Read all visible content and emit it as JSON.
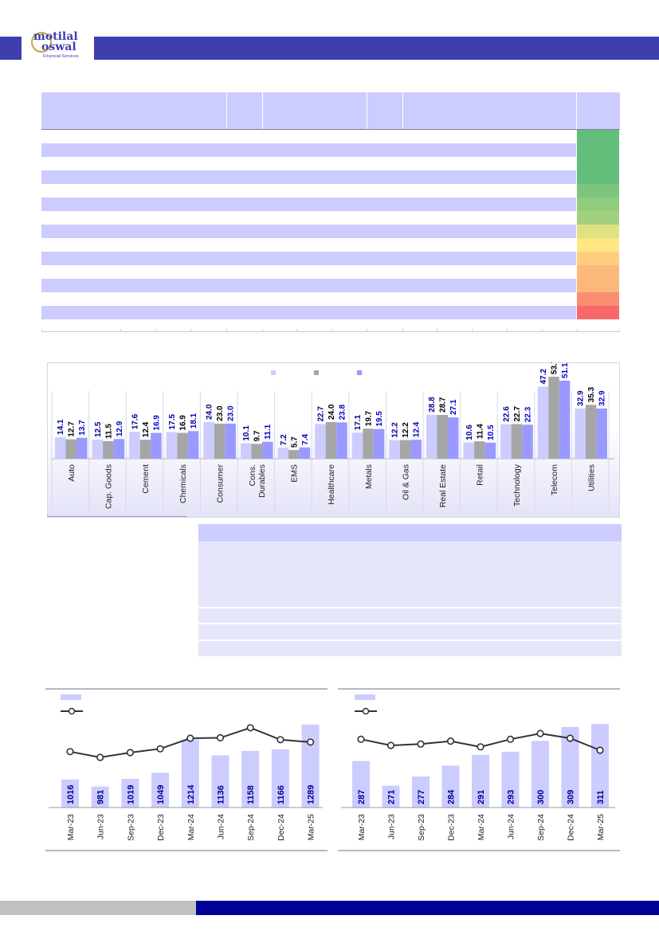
{
  "brand": {
    "line1": "motilal",
    "line2": "oswal",
    "sub": "Financial Services"
  },
  "pe_chart": {
    "chart_data": {
      "type": "bar",
      "categories": [
        "Auto",
        "Cap. Goods",
        "Cement",
        "Chemicals",
        "Consumer",
        "Cons. Durables",
        "EMS",
        "Healthcare",
        "Metals",
        "Oil & Gas",
        "Real Estate",
        "Retail",
        "Technology",
        "Telecom",
        "Utilities"
      ],
      "category_lines": [
        [
          "Auto"
        ],
        [
          "Cap. Goods"
        ],
        [
          "Cement"
        ],
        [
          "Chemicals"
        ],
        [
          "Consumer"
        ],
        [
          "Cons.",
          "Durables"
        ],
        [
          "EMS"
        ],
        [
          "Healthcare"
        ],
        [
          "Metals"
        ],
        [
          "Oil & Gas"
        ],
        [
          "Real Estate"
        ],
        [
          "Retail"
        ],
        [
          "Technology"
        ],
        [
          "Telecom"
        ],
        [
          "Utilities"
        ]
      ],
      "series": [
        {
          "name": "",
          "color": "#ccccff",
          "label_color": "#000096",
          "values": [
            14.1,
            12.5,
            17.6,
            17.5,
            24.0,
            10.1,
            7.2,
            22.7,
            17.1,
            12.2,
            28.8,
            10.6,
            22.6,
            47.2,
            32.9
          ]
        },
        {
          "name": "",
          "color": "#a6a6a6",
          "label_color": "#000000",
          "values": [
            12.7,
            11.5,
            12.4,
            16.9,
            23.0,
            9.7,
            5.7,
            24.0,
            19.7,
            12.2,
            28.7,
            11.4,
            22.7,
            53.7,
            35.3
          ]
        },
        {
          "name": "",
          "color": "#9999ff",
          "label_color": "#0000cc",
          "values": [
            13.7,
            12.9,
            16.9,
            18.1,
            23.0,
            11.1,
            7.4,
            23.8,
            19.5,
            12.4,
            27.1,
            10.5,
            22.3,
            51.1,
            32.9
          ]
        }
      ],
      "ylim": [
        0,
        60
      ],
      "legend_position": "top-center"
    }
  },
  "heatmap": {
    "colors": [
      "#63be7b",
      "#63be7b",
      "#63be7b",
      "#63be7b",
      "#7cc57d",
      "#90cb7e",
      "#a2d07f",
      "#dfe282",
      "#ffe884",
      "#fecd7f",
      "#fdb97b",
      "#fcb87a",
      "#fa8e72",
      "#f8696b"
    ]
  },
  "chart_left": {
    "chart_data": {
      "type": "bar",
      "categories": [
        "Mar-23",
        "Jun-23",
        "Sep-23",
        "Dec-23",
        "Mar-24",
        "Jun-24",
        "Sep-24",
        "Dec-24",
        "Mar-25"
      ],
      "series": [
        {
          "name": "",
          "values": [
            1016,
            981,
            1019,
            1049,
            1214,
            1136,
            1158,
            1166,
            1289
          ]
        }
      ],
      "line_series": {
        "name": "",
        "relative_levels": [
          0.42,
          0.3,
          0.4,
          0.48,
          0.7,
          0.71,
          0.92,
          0.67,
          0.62
        ]
      }
    }
  },
  "chart_right": {
    "chart_data": {
      "type": "bar",
      "categories": [
        "Mar-23",
        "Jun-23",
        "Sep-23",
        "Dec-23",
        "Mar-24",
        "Jun-24",
        "Sep-24",
        "Dec-24",
        "Mar-25"
      ],
      "series": [
        {
          "name": "",
          "values": [
            287,
            271,
            277,
            284,
            291,
            293,
            300,
            309,
            311
          ]
        }
      ],
      "line_series": {
        "name": "",
        "relative_levels": [
          0.68,
          0.55,
          0.58,
          0.64,
          0.52,
          0.68,
          0.8,
          0.7,
          0.45
        ]
      }
    }
  }
}
